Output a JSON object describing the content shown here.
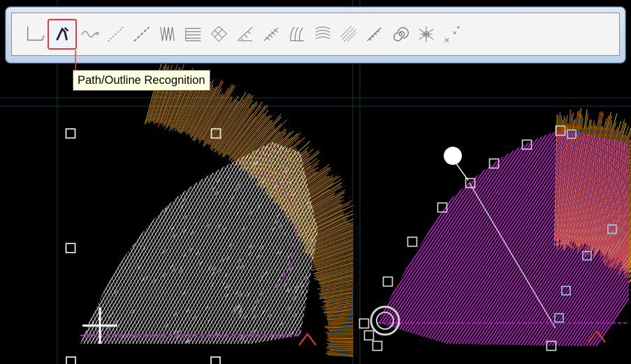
{
  "tooltip": {
    "text": "Path/Outline Recognition"
  },
  "toolbar": {
    "tools": [
      {
        "id": "corner",
        "icon": "corner-line-icon",
        "active": false
      },
      {
        "id": "path-outline",
        "icon": "path-outline-recognition-icon",
        "active": true
      },
      {
        "id": "wave",
        "icon": "wave-line-icon",
        "active": false
      },
      {
        "id": "dotted-line",
        "icon": "dotted-line-icon",
        "active": false
      },
      {
        "id": "dashed-line",
        "icon": "dashed-line-icon",
        "active": false
      },
      {
        "id": "vertical-zigzag",
        "icon": "vertical-zigzag-icon",
        "active": false
      },
      {
        "id": "horizontal-lines",
        "icon": "horizontal-lines-icon",
        "active": false
      },
      {
        "id": "crosshatch",
        "icon": "crosshatch-fill-icon",
        "active": false
      },
      {
        "id": "corner-stitch",
        "icon": "corner-stitch-icon",
        "active": false
      },
      {
        "id": "diagonal-satin",
        "icon": "diagonal-satin-icon",
        "active": false
      },
      {
        "id": "curved-satin",
        "icon": "curved-satin-icon",
        "active": false
      },
      {
        "id": "contour-fill",
        "icon": "contour-fill-icon",
        "active": false
      },
      {
        "id": "diagonal-fill",
        "icon": "diagonal-fill-icon",
        "active": false
      },
      {
        "id": "motif-run",
        "icon": "motif-run-icon",
        "active": false
      },
      {
        "id": "spiral",
        "icon": "spiral-icon",
        "active": false
      },
      {
        "id": "radial-fill",
        "icon": "radial-fill-icon",
        "active": false
      },
      {
        "id": "cross-stitch",
        "icon": "cross-stitch-icon",
        "active": false
      }
    ]
  },
  "colors": {
    "canvas_bg": "#000000",
    "grid": "#0f3a3a",
    "stitch_white": "#ffffff",
    "stitch_magenta": "#c21fcf",
    "stitch_orange": "#ff8a00",
    "stitch_yellow": "#e6e600",
    "highlight_red": "#e53a3a",
    "tooltip_bg": "#ffffe1"
  }
}
